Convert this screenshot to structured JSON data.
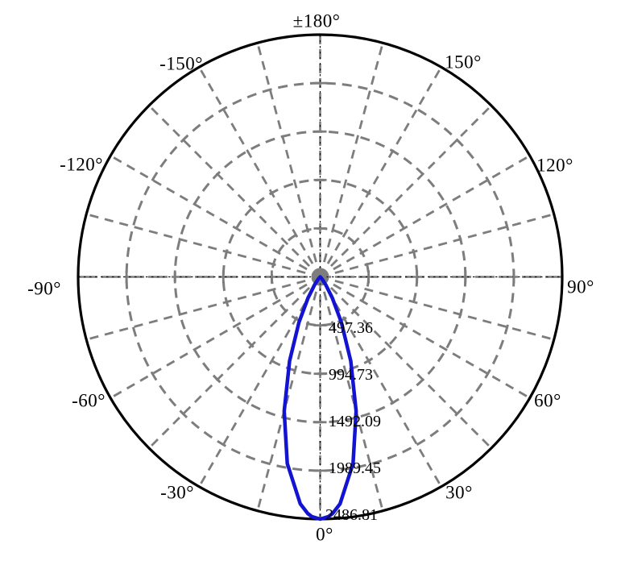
{
  "chart_data": {
    "type": "line",
    "plot_style": "polar",
    "title": "",
    "description": "Polar luminous intensity distribution with a single narrow lobe pointing toward 0° (bottom), peak 2486.81 at 0°",
    "orientation": {
      "zero_angle_position": "bottom",
      "top_label": "±180°",
      "positive_angles_side": "right",
      "angle_unit": "deg"
    },
    "grid": {
      "style": "dashed",
      "spoke_step_deg": 15,
      "ring_count": 5,
      "legend": "off"
    },
    "angle_ticks": [
      {
        "angle": 180,
        "label": "±180°"
      },
      {
        "angle": 150,
        "label": "150°"
      },
      {
        "angle": 120,
        "label": "120°"
      },
      {
        "angle": 90,
        "label": "90°"
      },
      {
        "angle": 60,
        "label": "60°"
      },
      {
        "angle": 30,
        "label": "30°"
      },
      {
        "angle": 0,
        "label": "0°"
      },
      {
        "angle": -30,
        "label": "-30°"
      },
      {
        "angle": -60,
        "label": "-60°"
      },
      {
        "angle": -90,
        "label": "-90°"
      },
      {
        "angle": -120,
        "label": "-120°"
      },
      {
        "angle": -150,
        "label": "-150°"
      }
    ],
    "radial_ticks": [
      {
        "value": 497.36,
        "label": "497.36"
      },
      {
        "value": 994.73,
        "label": "994.73"
      },
      {
        "value": 1492.09,
        "label": "1492.09"
      },
      {
        "value": 1989.45,
        "label": "1989.45"
      },
      {
        "value": 2486.81,
        "label": "2486.81"
      }
    ],
    "radial_range": [
      0,
      2486.81
    ],
    "series": [
      {
        "name": "luminous-intensity-lobe",
        "color": "#1313d2",
        "peak_value": 2486.81,
        "peak_angle": 0,
        "points": [
          {
            "angle": -90,
            "value": 0
          },
          {
            "angle": -85,
            "value": 0
          },
          {
            "angle": -80,
            "value": 0
          },
          {
            "angle": -75,
            "value": 0
          },
          {
            "angle": -70,
            "value": 0
          },
          {
            "angle": -65,
            "value": 0
          },
          {
            "angle": -60,
            "value": 0.1
          },
          {
            "angle": -55,
            "value": 0.3
          },
          {
            "angle": -50,
            "value": 2.1
          },
          {
            "angle": -45,
            "value": 9.7
          },
          {
            "angle": -40,
            "value": 35
          },
          {
            "angle": -35,
            "value": 102
          },
          {
            "angle": -30,
            "value": 249
          },
          {
            "angle": -25,
            "value": 516
          },
          {
            "angle": -20,
            "value": 919
          },
          {
            "angle": -15,
            "value": 1428
          },
          {
            "angle": -10,
            "value": 1946
          },
          {
            "angle": -5,
            "value": 2340
          },
          {
            "angle": -3,
            "value": 2433
          },
          {
            "angle": -2,
            "value": 2463
          },
          {
            "angle": 0,
            "value": 2486.81
          },
          {
            "angle": 2,
            "value": 2463
          },
          {
            "angle": 3,
            "value": 2433
          },
          {
            "angle": 5,
            "value": 2340
          },
          {
            "angle": 10,
            "value": 1946
          },
          {
            "angle": 15,
            "value": 1428
          },
          {
            "angle": 20,
            "value": 919
          },
          {
            "angle": 25,
            "value": 516
          },
          {
            "angle": 30,
            "value": 249
          },
          {
            "angle": 35,
            "value": 102
          },
          {
            "angle": 40,
            "value": 35
          },
          {
            "angle": 45,
            "value": 9.7
          },
          {
            "angle": 50,
            "value": 2.1
          },
          {
            "angle": 55,
            "value": 0.3
          },
          {
            "angle": 60,
            "value": 0.1
          },
          {
            "angle": 65,
            "value": 0
          },
          {
            "angle": 70,
            "value": 0
          },
          {
            "angle": 75,
            "value": 0
          },
          {
            "angle": 80,
            "value": 0
          },
          {
            "angle": 85,
            "value": 0
          },
          {
            "angle": 90,
            "value": 0
          }
        ]
      }
    ]
  },
  "colors": {
    "background": "#ffffff",
    "outer_circle": "#000000",
    "grid": "#7d7d7d",
    "axis_overlay": "#111111",
    "curve": "#1313d2",
    "text": "#000000"
  }
}
